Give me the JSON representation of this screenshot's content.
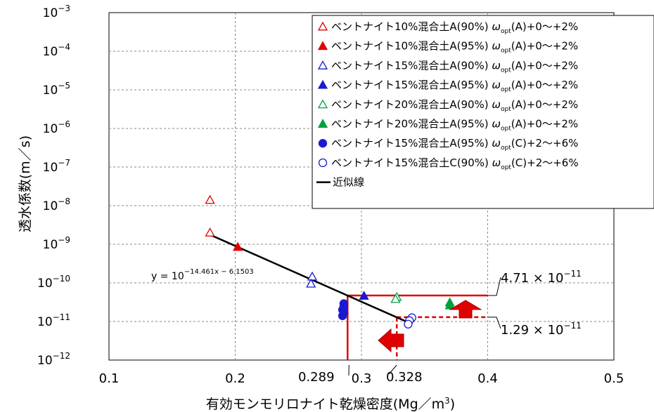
{
  "chart_data": {
    "type": "scatter",
    "x_axis": {
      "label": "有効モンモリロナイト乾燥密度(Mg／m³)",
      "range": [
        0.1,
        0.5
      ],
      "ticks": [
        "0.1",
        "0.2",
        "0.3",
        "0.4",
        "0.5"
      ],
      "grid": true
    },
    "y_axis": {
      "label": "透水係数(m／s)",
      "scale": "log",
      "range": [
        1e-12,
        0.001
      ],
      "tick_exponents": [
        -12,
        -11,
        -10,
        -9,
        -8,
        -7,
        -6,
        -5,
        -4,
        -3
      ]
    },
    "legend_position": "top-right",
    "series": [
      {
        "name": "ベントナイト10%混合土A(90%)",
        "cond": "(A)+0〜+2%",
        "marker": "triangle-open",
        "color": "#e00000",
        "points": [
          [
            0.18,
            1.4e-08
          ],
          [
            0.18,
            2e-09
          ]
        ]
      },
      {
        "name": "ベントナイト10%混合土A(95%)",
        "cond": "(A)+0〜+2%",
        "marker": "triangle-filled",
        "color": "#e00000",
        "points": [
          [
            0.202,
            8.5e-10
          ]
        ]
      },
      {
        "name": "ベントナイト15%混合土A(90%)",
        "cond": "(A)+0〜+2%",
        "marker": "triangle-open",
        "color": "#1a1ad0",
        "points": [
          [
            0.261,
            1.45e-10
          ],
          [
            0.26,
            9.5e-11
          ]
        ]
      },
      {
        "name": "ベントナイト15%混合土A(95%)",
        "cond": "(A)+0〜+2%",
        "marker": "triangle-filled",
        "color": "#1a1ad0",
        "points": [
          [
            0.302,
            4.6e-11
          ]
        ]
      },
      {
        "name": "ベントナイト20%混合土A(90%)",
        "cond": "(A)+0〜+2%",
        "marker": "triangle-open",
        "color": "#00a040",
        "points": [
          [
            0.328,
            4.3e-11
          ],
          [
            0.327,
            3.8e-11
          ]
        ]
      },
      {
        "name": "ベントナイト20%混合土A(95%)",
        "cond": "(A)+0〜+2%",
        "marker": "triangle-filled",
        "color": "#00a040",
        "points": [
          [
            0.37,
            3.1e-11
          ],
          [
            0.37,
            2.6e-11
          ]
        ]
      },
      {
        "name": "ベントナイト15%混合土A(95%)",
        "cond": "(C)+2〜+6%",
        "marker": "circle-filled",
        "color": "#1a1ad0",
        "points": [
          [
            0.286,
            2.9e-11
          ],
          [
            0.286,
            2.4e-11
          ],
          [
            0.285,
            2e-11
          ],
          [
            0.286,
            1.7e-11
          ],
          [
            0.285,
            1.4e-11
          ]
        ]
      },
      {
        "name": "ベントナイト15%混合土C(90%)",
        "cond": "(C)+2〜+6%",
        "marker": "circle-open",
        "color": "#1a1ad0",
        "points": [
          [
            0.34,
            1.25e-11
          ],
          [
            0.338,
            1.05e-11
          ],
          [
            0.337,
            8.5e-12
          ]
        ]
      }
    ],
    "fit_line": {
      "name": "近似線",
      "slope": -14.461,
      "intercept": -6.1503,
      "x_range": [
        0.18,
        0.34
      ],
      "equation_base": "y = 10",
      "equation_exponent": "−14.461x − 6.1503"
    },
    "annotations": {
      "upper_value": "4.71 × 10",
      "upper_exponent": "−11",
      "lower_value": "1.29 × 10",
      "lower_exponent": "−11",
      "x_left": "0.289",
      "x_right": "0.328"
    },
    "colors": {
      "red": "#e00000",
      "blue": "#1a1ad0",
      "green": "#00a040",
      "line": "#000000"
    }
  }
}
